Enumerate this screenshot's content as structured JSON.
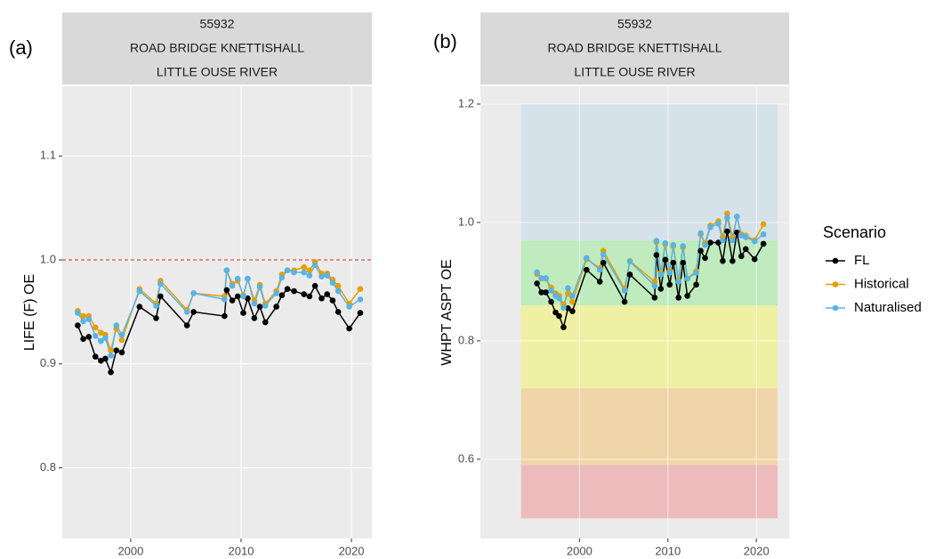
{
  "chart_data": [
    {
      "type": "line",
      "panel_label": "(a)",
      "strip": [
        "55932",
        "ROAD BRIDGE KNETTISHALL",
        "LITTLE OUSE RIVER"
      ],
      "ylabel": "LIFE (F) OE",
      "x": [
        1995.2,
        1995.7,
        1996.2,
        1996.8,
        1997.3,
        1997.7,
        1998.2,
        1998.7,
        1999.2,
        2000.8,
        2002.3,
        2002.7,
        2005.1,
        2005.7,
        2008.5,
        2008.7,
        2009.2,
        2009.7,
        2010.2,
        2010.6,
        2011.2,
        2011.7,
        2012.2,
        2013.2,
        2013.7,
        2014.2,
        2014.8,
        2015.7,
        2016.2,
        2016.7,
        2017.3,
        2017.8,
        2018.3,
        2018.8,
        2019.8,
        2020.8
      ],
      "series": [
        {
          "name": "FL",
          "color": "#000000",
          "values": [
            0.937,
            0.924,
            0.926,
            0.907,
            0.903,
            0.905,
            0.892,
            0.913,
            0.911,
            0.955,
            0.944,
            0.965,
            0.937,
            0.95,
            0.946,
            0.971,
            0.961,
            0.965,
            0.949,
            0.963,
            0.944,
            0.955,
            0.94,
            0.955,
            0.966,
            0.972,
            0.97,
            0.967,
            0.965,
            0.975,
            0.963,
            0.967,
            0.961,
            0.95,
            0.934,
            0.949
          ]
        },
        {
          "name": "Historical",
          "color": "#E69F00",
          "values": [
            0.951,
            0.946,
            0.946,
            0.935,
            0.93,
            0.928,
            0.913,
            0.934,
            0.923,
            0.972,
            0.958,
            0.98,
            0.952,
            0.968,
            0.965,
            0.99,
            0.977,
            0.98,
            0.966,
            0.982,
            0.961,
            0.976,
            0.958,
            0.97,
            0.986,
            0.99,
            0.99,
            0.993,
            0.99,
            0.998,
            0.987,
            0.987,
            0.981,
            0.975,
            0.958,
            0.972
          ]
        },
        {
          "name": "Naturalised",
          "color": "#56B4E9",
          "values": [
            0.949,
            0.941,
            0.943,
            0.927,
            0.922,
            0.925,
            0.908,
            0.937,
            0.928,
            0.97,
            0.956,
            0.977,
            0.95,
            0.968,
            0.962,
            0.99,
            0.975,
            0.982,
            0.965,
            0.982,
            0.958,
            0.974,
            0.956,
            0.968,
            0.983,
            0.99,
            0.988,
            0.988,
            0.985,
            0.995,
            0.984,
            0.985,
            0.978,
            0.97,
            0.955,
            0.962
          ]
        }
      ],
      "xlim": [
        1993.8,
        2021.85
      ],
      "xticks": [
        2000,
        2010,
        2020
      ],
      "ylim": [
        0.732,
        1.167
      ],
      "yticks": [
        0.8,
        0.9,
        {
          "value": 1,
          "label": "1.0"
        },
        1.1
      ],
      "hline": {
        "value": 1,
        "color": "#E8473F"
      },
      "grid": true
    },
    {
      "type": "line",
      "panel_label": "(b)",
      "strip": [
        "55932",
        "ROAD BRIDGE KNETTISHALL",
        "LITTLE OUSE RIVER"
      ],
      "ylabel": "WHPT ASPT OE",
      "legend_title": "Scenario",
      "x": [
        1995.2,
        1995.7,
        1996.2,
        1996.8,
        1997.3,
        1997.7,
        1998.2,
        1998.7,
        1999.2,
        2000.8,
        2002.3,
        2002.7,
        2005.1,
        2005.7,
        2008.5,
        2008.7,
        2009.2,
        2009.7,
        2010.2,
        2010.6,
        2011.2,
        2011.7,
        2012.2,
        2013.2,
        2013.7,
        2014.2,
        2014.8,
        2015.7,
        2016.2,
        2016.7,
        2017.3,
        2017.8,
        2018.3,
        2018.8,
        2019.8,
        2020.8
      ],
      "series": [
        {
          "name": "FL",
          "color": "#000000",
          "values": [
            0.897,
            0.882,
            0.882,
            0.866,
            0.848,
            0.842,
            0.823,
            0.855,
            0.85,
            0.92,
            0.9,
            0.932,
            0.866,
            0.912,
            0.873,
            0.945,
            0.888,
            0.937,
            0.895,
            0.932,
            0.873,
            0.932,
            0.876,
            0.895,
            0.952,
            0.94,
            0.966,
            0.966,
            0.935,
            0.985,
            0.935,
            0.983,
            0.943,
            0.955,
            0.938,
            0.964
          ]
        },
        {
          "name": "Historical",
          "color": "#E69F00",
          "values": [
            0.913,
            0.905,
            0.905,
            0.89,
            0.88,
            0.876,
            0.861,
            0.88,
            0.866,
            0.938,
            0.923,
            0.952,
            0.888,
            0.935,
            0.9,
            0.967,
            0.915,
            0.963,
            0.918,
            0.96,
            0.902,
            0.958,
            0.905,
            0.918,
            0.98,
            0.965,
            0.995,
            1.002,
            0.975,
            1.015,
            0.975,
            1.01,
            0.98,
            0.978,
            0.97,
            0.997
          ]
        },
        {
          "name": "Naturalised",
          "color": "#56B4E9",
          "values": [
            0.916,
            0.906,
            0.906,
            0.885,
            0.876,
            0.872,
            0.856,
            0.889,
            0.876,
            0.94,
            0.92,
            0.946,
            0.885,
            0.934,
            0.893,
            0.969,
            0.912,
            0.965,
            0.915,
            0.962,
            0.9,
            0.96,
            0.905,
            0.915,
            0.982,
            0.962,
            0.992,
            0.998,
            0.97,
            1.008,
            0.97,
            1.01,
            0.978,
            0.975,
            0.968,
            0.98
          ]
        }
      ],
      "xlim": [
        1988.8,
        2023.7
      ],
      "xticks": [
        2000,
        2010,
        2020
      ],
      "ylim": [
        0.466,
        1.23
      ],
      "yticks": [
        0.6,
        0.8,
        {
          "value": 1,
          "label": "1.0"
        },
        1.2
      ],
      "bands": [
        {
          "from": 0.5,
          "to": 0.59,
          "color": "#EDBBBC"
        },
        {
          "from": 0.59,
          "to": 0.72,
          "color": "#F0D5A8"
        },
        {
          "from": 0.72,
          "to": 0.86,
          "color": "#EFF0A3"
        },
        {
          "from": 0.86,
          "to": 0.97,
          "color": "#BFEBBF"
        },
        {
          "from": 0.97,
          "to": 1.2,
          "color": "#D6E2EA"
        }
      ],
      "band_xlim": [
        1993.4,
        2022.4
      ],
      "grid": true
    }
  ]
}
